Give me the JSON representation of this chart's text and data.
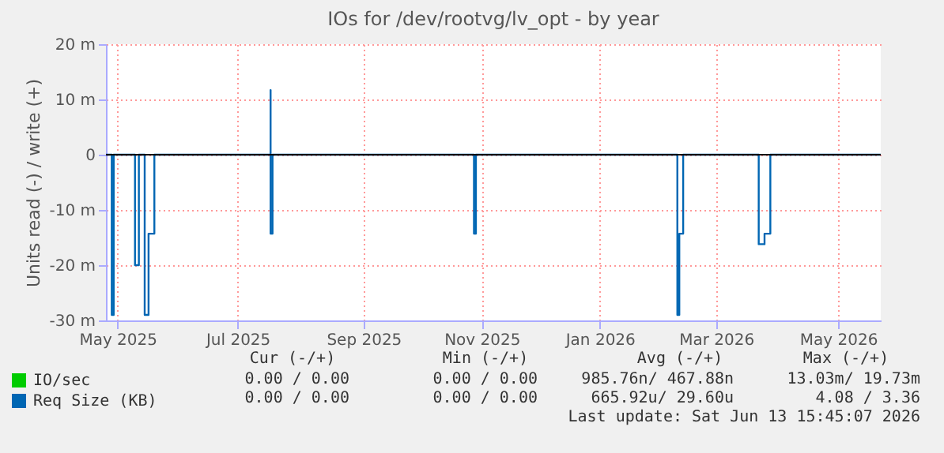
{
  "chart_data": {
    "type": "line",
    "title": "IOs for /dev/rootvg/lv_opt - by year",
    "ylabel": "Units read (-) / write (+)",
    "xlim": [
      "2025-05-09",
      "2026-06-13"
    ],
    "xticks": [
      {
        "value": "2025-05-15",
        "label": "May 2025"
      },
      {
        "value": "2025-07-16",
        "label": "Jul 2025"
      },
      {
        "value": "2025-09-19",
        "label": "Sep 2025"
      },
      {
        "value": "2025-11-19",
        "label": "Nov 2025"
      },
      {
        "value": "2026-01-19",
        "label": "Jan 2026"
      },
      {
        "value": "2026-03-20",
        "label": "Mar 2026"
      },
      {
        "value": "2026-05-22",
        "label": "May 2026"
      }
    ],
    "ylim": [
      -30,
      20
    ],
    "yticks": [
      {
        "value": -30,
        "label": "-30 m"
      },
      {
        "value": -20,
        "label": "-20 m"
      },
      {
        "value": -10,
        "label": "-10 m"
      },
      0,
      {
        "value": 10,
        "label": "10 m"
      },
      {
        "value": 20,
        "label": "20 m"
      }
    ],
    "grid": true,
    "legend": "bottom left",
    "ref_lines": [
      {
        "axis": "y",
        "value": 0,
        "color": "#000000"
      }
    ],
    "series": [
      {
        "name": "IO/sec",
        "color": "#00cc00"
      },
      {
        "name": "Req Size (KB)",
        "color": "#0066b3",
        "x": [
          "2025-05-09",
          "2025-05-12",
          "2025-05-12",
          "2025-05-13",
          "2025-05-13",
          "2025-05-24",
          "2025-05-24",
          "2025-05-26",
          "2025-05-26",
          "2025-05-29",
          "2025-05-29",
          "2025-05-31",
          "2025-05-31",
          "2025-06-03",
          "2025-06-03",
          "2025-08-02",
          "2025-08-02",
          "2025-08-02",
          "2025-08-03",
          "2025-08-03",
          "2025-11-15",
          "2025-11-15",
          "2025-11-16",
          "2025-11-16",
          "2026-02-28",
          "2026-02-28",
          "2026-03-01",
          "2026-03-01",
          "2026-03-03",
          "2026-03-03",
          "2026-04-11",
          "2026-04-11",
          "2026-04-14",
          "2026-04-14",
          "2026-04-17",
          "2026-04-17",
          "2026-06-13"
        ],
        "values": [
          0,
          0,
          -29,
          -29,
          0,
          0,
          -20,
          -20,
          0,
          0,
          -29,
          -29,
          -14.3,
          -14.3,
          0,
          0,
          11.7,
          -14.3,
          -14.3,
          0,
          0,
          -14.3,
          -14.3,
          0,
          0,
          -29,
          -29,
          -14.3,
          -14.3,
          0,
          0,
          -16.2,
          -16.2,
          -14.3,
          -14.3,
          0,
          0
        ]
      }
    ],
    "annotations": [
      "Cur (-/+)",
      "Min (-/+)",
      "Avg (-/+)",
      "Max (-/+)",
      "0.00 /   0.00",
      "0.00 /   0.00",
      "985.76n/ 467.88n",
      "13.03m/  19.73m",
      "0.00 /   0.00",
      "0.00 /   0.00",
      "665.92u/  29.60u",
      "4.08 /   3.36",
      "Last update: Sat Jun 13 15:45:07 2026"
    ]
  }
}
